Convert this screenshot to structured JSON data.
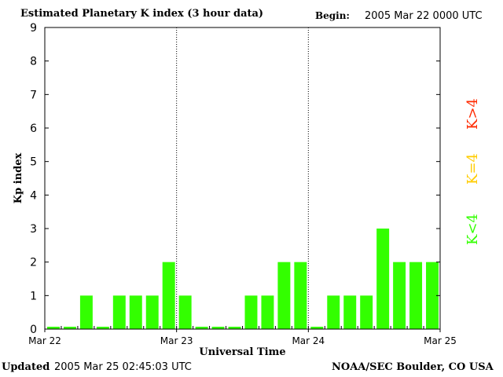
{
  "header": {
    "title": "Estimated Planetary K index (3 hour data)",
    "begin_label": "Begin:",
    "begin_value": "2005 Mar 22 0000 UTC"
  },
  "footer": {
    "updated_label": "Updated",
    "updated_value": "2005 Mar 25 02:45:03 UTC",
    "credit": "NOAA/SEC Boulder, CO USA"
  },
  "legend": [
    {
      "label": "K>4",
      "color": "#ff2a00"
    },
    {
      "label": "K=4",
      "color": "#ffcc00"
    },
    {
      "label": "K<4",
      "color": "#33ff00"
    }
  ],
  "chart_data": {
    "type": "bar",
    "title": "Estimated Planetary K index (3 hour data)",
    "xlabel": "Universal Time",
    "ylabel": "Kp index",
    "ylim": [
      0,
      9
    ],
    "yticks": [
      0,
      1,
      2,
      3,
      4,
      5,
      6,
      7,
      8,
      9
    ],
    "xtick_labels": [
      "Mar 22",
      "Mar 23",
      "Mar 24",
      "Mar 25"
    ],
    "day_dividers": [
      "Mar 23",
      "Mar 24"
    ],
    "bar_color": "#33ff00",
    "categories": [
      "Mar 22 00",
      "Mar 22 03",
      "Mar 22 06",
      "Mar 22 09",
      "Mar 22 12",
      "Mar 22 15",
      "Mar 22 18",
      "Mar 22 21",
      "Mar 23 00",
      "Mar 23 03",
      "Mar 23 06",
      "Mar 23 09",
      "Mar 23 12",
      "Mar 23 15",
      "Mar 23 18",
      "Mar 23 21",
      "Mar 24 00",
      "Mar 24 03",
      "Mar 24 06",
      "Mar 24 09",
      "Mar 24 12",
      "Mar 24 15",
      "Mar 24 18",
      "Mar 24 21"
    ],
    "values": [
      0,
      0,
      1,
      0,
      1,
      1,
      1,
      2,
      1,
      0,
      0,
      0,
      1,
      1,
      2,
      2,
      0,
      1,
      1,
      1,
      3,
      2,
      2,
      2
    ]
  }
}
